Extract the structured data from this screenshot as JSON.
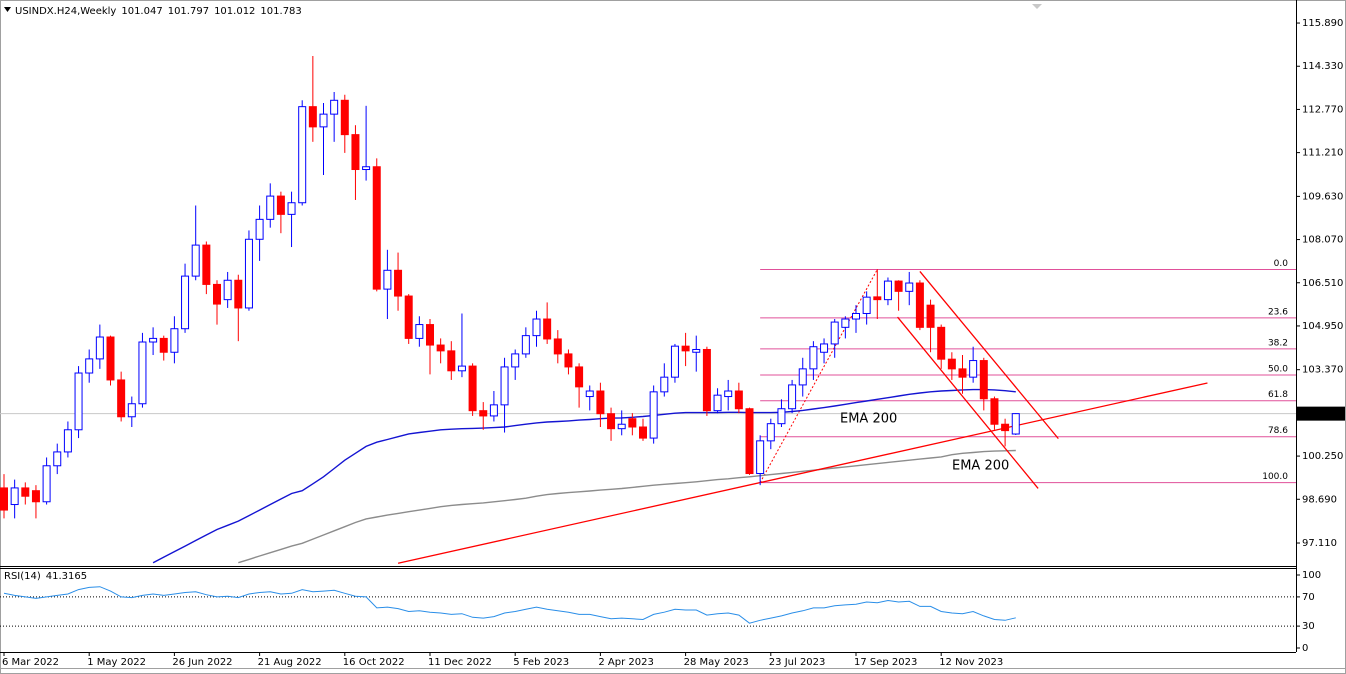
{
  "chart_data": [
    {
      "type": "candlestick",
      "title": "USINDX.H24,Weekly",
      "categories": [
        "6 Mar 2022",
        null,
        null,
        null,
        null,
        null,
        null,
        null,
        "1 May 2022",
        null,
        null,
        null,
        null,
        null,
        null,
        null,
        "26 Jun 2022",
        null,
        null,
        null,
        null,
        null,
        null,
        null,
        "21 Aug 2022",
        null,
        null,
        null,
        null,
        null,
        null,
        null,
        "16 Oct 2022",
        null,
        null,
        null,
        null,
        null,
        null,
        null,
        "11 Dec 2022",
        null,
        null,
        null,
        null,
        null,
        null,
        null,
        "5 Feb 2023",
        null,
        null,
        null,
        null,
        null,
        null,
        null,
        "2 Apr 2023",
        null,
        null,
        null,
        null,
        null,
        null,
        null,
        "28 May 2023",
        null,
        null,
        null,
        null,
        null,
        null,
        null,
        "23 Jul 2023",
        null,
        null,
        null,
        null,
        null,
        null,
        null,
        "17 Sep 2023",
        null,
        null,
        null,
        null,
        null,
        null,
        null,
        "12 Nov 2023",
        null,
        null,
        null,
        null,
        null,
        null,
        null
      ],
      "open": [
        99.1,
        98.5,
        99.1,
        99.0,
        98.6,
        99.9,
        100.4,
        101.2,
        103.25,
        103.76,
        104.55,
        103.0,
        101.67,
        102.14,
        104.37,
        104.5,
        104.0,
        104.85,
        106.75,
        107.87,
        106.45,
        105.9,
        106.6,
        105.6,
        108.08,
        108.8,
        109.64,
        108.98,
        109.4,
        112.87,
        112.14,
        112.6,
        113.1,
        111.86,
        110.6,
        110.7,
        106.28,
        106.96,
        106.03,
        104.5,
        105.0,
        104.26,
        104.05,
        103.33,
        103.5,
        101.89,
        101.7,
        102.1,
        103.47,
        103.94,
        104.6,
        105.2,
        104.48,
        103.94,
        103.47,
        102.4,
        102.6,
        101.78,
        101.24,
        101.6,
        101.3,
        100.9,
        102.57,
        103.1,
        104.22,
        104.0,
        104.1,
        101.89,
        102.4,
        102.6,
        101.96,
        99.62,
        100.8,
        101.42,
        101.96,
        102.82,
        103.4,
        104.0,
        104.3,
        104.9,
        105.2,
        105.4,
        106.0,
        105.9,
        106.57,
        106.2,
        106.5,
        105.7,
        104.9,
        103.75,
        103.4,
        103.1,
        103.7,
        102.32,
        101.4,
        101.047
      ],
      "high": [
        99.6,
        99.4,
        99.3,
        99.2,
        100.2,
        100.7,
        101.5,
        103.5,
        104.1,
        105.0,
        104.6,
        103.3,
        102.4,
        104.7,
        104.9,
        104.6,
        105.3,
        107.2,
        109.3,
        108.0,
        106.6,
        106.9,
        106.8,
        108.4,
        109.3,
        110.1,
        109.8,
        109.8,
        113.1,
        114.7,
        113.0,
        113.4,
        113.3,
        112.2,
        112.9,
        111.0,
        107.7,
        107.6,
        106.1,
        105.3,
        105.2,
        104.5,
        104.4,
        105.4,
        103.6,
        102.2,
        102.6,
        103.8,
        104.1,
        104.9,
        105.5,
        105.8,
        104.8,
        104.1,
        103.6,
        102.8,
        102.9,
        102.0,
        101.9,
        101.8,
        101.6,
        102.8,
        103.6,
        104.3,
        104.7,
        104.6,
        104.2,
        102.7,
        103.0,
        102.9,
        102.0,
        101.0,
        101.6,
        102.3,
        103.0,
        103.8,
        104.4,
        104.5,
        105.2,
        105.3,
        105.7,
        106.2,
        107.0,
        106.7,
        106.6,
        106.9,
        106.6,
        105.9,
        105.0,
        104.0,
        103.9,
        104.2,
        103.8,
        102.4,
        101.6,
        101.797
      ],
      "low": [
        98.0,
        98.0,
        98.5,
        98.0,
        98.5,
        99.6,
        100.2,
        100.9,
        102.9,
        103.4,
        102.8,
        101.5,
        101.3,
        102.0,
        103.9,
        103.7,
        103.6,
        104.7,
        106.6,
        106.1,
        105.0,
        105.6,
        104.4,
        105.5,
        107.3,
        108.5,
        108.3,
        107.8,
        109.3,
        111.6,
        110.4,
        111.6,
        111.2,
        109.5,
        110.2,
        106.2,
        105.2,
        105.5,
        104.3,
        104.2,
        103.2,
        103.6,
        103.0,
        103.1,
        101.7,
        101.2,
        101.5,
        101.1,
        103.0,
        103.8,
        104.2,
        104.3,
        103.6,
        103.2,
        102.0,
        101.9,
        101.3,
        100.8,
        101.0,
        101.0,
        100.8,
        100.7,
        102.4,
        102.9,
        103.5,
        103.3,
        101.7,
        101.8,
        101.9,
        101.8,
        99.57,
        99.2,
        100.5,
        101.3,
        101.8,
        102.4,
        103.0,
        103.6,
        103.8,
        104.5,
        104.7,
        105.0,
        105.2,
        105.7,
        105.5,
        105.7,
        104.8,
        104.0,
        103.4,
        103.0,
        102.5,
        102.9,
        101.9,
        101.2,
        100.6,
        101.012
      ],
      "close": [
        98.3,
        99.1,
        98.8,
        98.6,
        99.9,
        100.4,
        101.2,
        103.25,
        103.76,
        104.55,
        103.0,
        101.67,
        102.14,
        104.37,
        104.5,
        104.0,
        104.85,
        106.75,
        107.87,
        106.45,
        105.74,
        106.6,
        105.6,
        108.08,
        108.8,
        109.64,
        108.98,
        109.4,
        112.87,
        112.14,
        112.6,
        113.1,
        111.86,
        110.6,
        110.7,
        106.28,
        106.96,
        106.03,
        104.5,
        105.0,
        104.26,
        104.05,
        103.33,
        103.5,
        101.89,
        101.7,
        102.1,
        103.47,
        103.94,
        104.6,
        105.2,
        104.48,
        103.94,
        103.47,
        102.75,
        102.6,
        101.78,
        101.24,
        101.4,
        101.3,
        100.9,
        102.57,
        103.1,
        104.22,
        104.05,
        104.1,
        101.89,
        102.45,
        102.6,
        101.96,
        99.62,
        100.8,
        101.42,
        101.96,
        102.82,
        103.4,
        104.2,
        104.3,
        105.09,
        105.2,
        105.4,
        105.99,
        105.9,
        106.57,
        106.2,
        106.5,
        104.9,
        104.9,
        103.75,
        103.4,
        103.1,
        103.7,
        102.32,
        101.4,
        101.17,
        101.783
      ],
      "up_color": "#0000ff",
      "down_color": "#ff0000",
      "series": [
        {
          "name": "EMA 200",
          "color": "#1414d2",
          "values": [
            null,
            null,
            null,
            null,
            null,
            null,
            null,
            null,
            null,
            null,
            null,
            null,
            null,
            null,
            96.4,
            96.6,
            96.8,
            97.0,
            97.2,
            97.4,
            97.6,
            97.75,
            97.9,
            98.1,
            98.3,
            98.5,
            98.7,
            98.9,
            99.0,
            99.25,
            99.5,
            99.8,
            100.1,
            100.35,
            100.6,
            100.75,
            100.85,
            100.95,
            101.05,
            101.1,
            101.15,
            101.2,
            101.22,
            101.24,
            101.25,
            101.26,
            101.28,
            101.3,
            101.35,
            101.4,
            101.45,
            101.48,
            101.5,
            101.52,
            101.55,
            101.57,
            101.6,
            101.62,
            101.63,
            101.65,
            101.68,
            101.72,
            101.76,
            101.8,
            101.82,
            101.82,
            101.82,
            101.82,
            101.83,
            101.83,
            101.82,
            101.82,
            101.82,
            101.83,
            101.86,
            101.9,
            101.95,
            102.0,
            102.06,
            102.12,
            102.18,
            102.24,
            102.3,
            102.36,
            102.42,
            102.48,
            102.53,
            102.57,
            102.6,
            102.62,
            102.64,
            102.65,
            102.65,
            102.64,
            102.61,
            102.57
          ]
        },
        {
          "name": "EMA 200",
          "color": "#8c8c8c",
          "values": [
            null,
            null,
            null,
            null,
            null,
            null,
            null,
            null,
            null,
            null,
            null,
            null,
            null,
            null,
            null,
            null,
            null,
            null,
            null,
            null,
            null,
            null,
            96.4,
            96.52,
            96.64,
            96.76,
            96.88,
            97.0,
            97.1,
            97.25,
            97.4,
            97.55,
            97.7,
            97.85,
            97.98,
            98.05,
            98.12,
            98.18,
            98.24,
            98.3,
            98.36,
            98.42,
            98.47,
            98.5,
            98.53,
            98.56,
            98.6,
            98.64,
            98.68,
            98.73,
            98.8,
            98.86,
            98.9,
            98.93,
            98.96,
            98.99,
            99.02,
            99.05,
            99.08,
            99.12,
            99.16,
            99.2,
            99.23,
            99.26,
            99.29,
            99.32,
            99.36,
            99.4,
            99.43,
            99.47,
            99.5,
            99.54,
            99.58,
            99.62,
            99.66,
            99.7,
            99.74,
            99.78,
            99.82,
            99.86,
            99.9,
            99.94,
            99.98,
            100.02,
            100.06,
            100.1,
            100.14,
            100.18,
            100.22,
            100.3,
            100.35,
            100.38,
            100.41,
            100.43,
            100.44,
            100.45
          ]
        }
      ],
      "trendlines": [
        {
          "from": [
            37,
            96.38
          ],
          "to": [
            113,
            102.89
          ],
          "color": "#ff0000"
        },
        {
          "from": [
            86,
            106.92
          ],
          "to": [
            99,
            100.88
          ],
          "color": "#ff0000"
        },
        {
          "from": [
            83.9,
            105.27
          ],
          "to": [
            97.1,
            99.08
          ],
          "color": "#ff0000"
        }
      ],
      "fibonacci": {
        "from": [
          71,
          99.29
        ],
        "to": [
          82,
          106.99
        ],
        "color": "#e0509a",
        "levels": [
          {
            "value": 106.99,
            "label": "0.0"
          },
          {
            "value": 105.24,
            "label": "23.6"
          },
          {
            "value": 104.12,
            "label": "38.2"
          },
          {
            "value": 103.18,
            "label": "50.0"
          },
          {
            "value": 102.25,
            "label": "61.8"
          },
          {
            "value": 100.95,
            "label": "78.6"
          },
          {
            "value": 99.29,
            "label": "100.0"
          }
        ]
      },
      "ylim": [
        96.28,
        116.65
      ],
      "yticks": [
        {
          "value": 115.89,
          "label": "115.890"
        },
        {
          "value": 114.33,
          "label": "114.330"
        },
        {
          "value": 112.77,
          "label": "112.770"
        },
        {
          "value": 111.21,
          "label": "111.210"
        },
        {
          "value": 109.63,
          "label": "109.630"
        },
        {
          "value": 108.07,
          "label": "108.070"
        },
        {
          "value": 106.51,
          "label": "106.510"
        },
        {
          "value": 104.95,
          "label": "104.950"
        },
        {
          "value": 103.37,
          "label": "103.370"
        },
        {
          "value": 100.25,
          "label": "100.250"
        },
        {
          "value": 98.69,
          "label": "98.690"
        },
        {
          "value": 97.11,
          "label": "97.110"
        }
      ]
    },
    {
      "type": "line",
      "title": "RSI(14)",
      "color": "#2a8ee8",
      "values": [
        75,
        72,
        70,
        68,
        70,
        72,
        74,
        80,
        83,
        84,
        78,
        70,
        69,
        72,
        74,
        72,
        74,
        76,
        77,
        73,
        70,
        71,
        69,
        74,
        76,
        77,
        74,
        75,
        80,
        77,
        78,
        79,
        75,
        71,
        70,
        55,
        56,
        54,
        50,
        51,
        49,
        48,
        46,
        47,
        42,
        41,
        43,
        48,
        50,
        53,
        56,
        53,
        51,
        49,
        46,
        46,
        43,
        40,
        41,
        40,
        39,
        46,
        49,
        53,
        52,
        52,
        45,
        47,
        48,
        45,
        34,
        38,
        41,
        44,
        48,
        51,
        55,
        55,
        58,
        59,
        60,
        63,
        62,
        65,
        63,
        64,
        57,
        57,
        50,
        48,
        47,
        50,
        44,
        39,
        38,
        41.3165
      ],
      "ylim": [
        0,
        100
      ],
      "yticks": [
        100,
        70,
        30,
        0
      ],
      "levels": [
        70,
        30
      ]
    }
  ]
}
